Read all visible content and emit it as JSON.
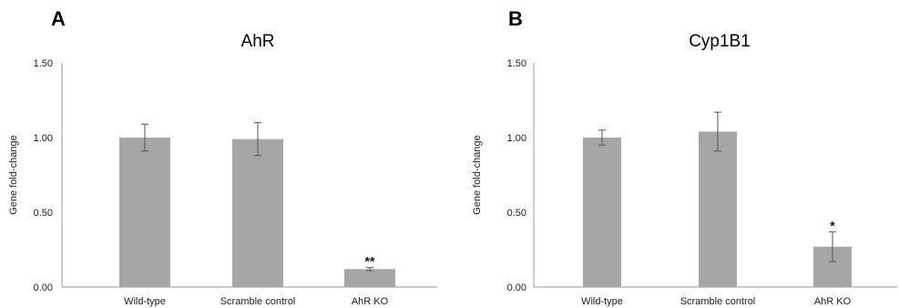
{
  "chart_data": [
    {
      "panel_label": "A",
      "type": "bar",
      "title": "AhR",
      "xlabel": "",
      "ylabel": "Gene fold-change",
      "ylim": [
        0,
        1.5
      ],
      "yticks": [
        "0.00",
        "0.50",
        "1.00",
        "1.50"
      ],
      "categories": [
        "Wild-type",
        "Scramble control",
        "AhR KO"
      ],
      "values": [
        1.0,
        0.99,
        0.12
      ],
      "errors": [
        0.09,
        0.11,
        0.01
      ],
      "significance": [
        "",
        "",
        "**"
      ],
      "bar_color": "#a6a6a6",
      "grid": false
    },
    {
      "panel_label": "B",
      "type": "bar",
      "title": "Cyp1B1",
      "xlabel": "",
      "ylabel": "Gene fold-change",
      "ylim": [
        0,
        1.5
      ],
      "yticks": [
        "0.00",
        "0.50",
        "1.00",
        "1.50"
      ],
      "categories": [
        "Wild-type",
        "Scramble control",
        "AhR KO"
      ],
      "values": [
        1.0,
        1.04,
        0.27
      ],
      "errors": [
        0.05,
        0.13,
        0.1
      ],
      "significance": [
        "",
        "",
        "*"
      ],
      "bar_color": "#a6a6a6",
      "grid": false
    }
  ]
}
